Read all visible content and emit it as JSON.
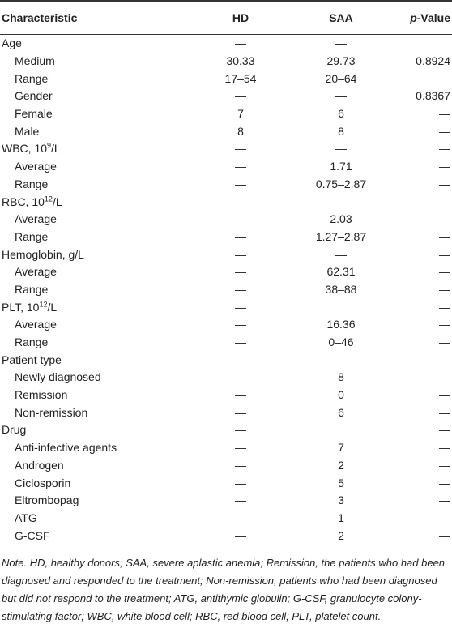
{
  "table": {
    "header": [
      "Characteristic",
      "HD",
      "SAA",
      "p-Value"
    ],
    "rows": [
      {
        "label": "Age",
        "level": 0,
        "cells": [
          "—",
          "—",
          null
        ]
      },
      {
        "label": "Medium",
        "level": 1,
        "cells": [
          "30.33",
          "29.73",
          "0.8924"
        ]
      },
      {
        "label": "Range",
        "level": 1,
        "cells": [
          "17–54",
          "20–64",
          null
        ]
      },
      {
        "label": "Gender",
        "level": 1,
        "cells": [
          "—",
          "—",
          "0.8367"
        ]
      },
      {
        "label": "Female",
        "level": 1,
        "cells": [
          "7",
          "6",
          "—"
        ]
      },
      {
        "label": "Male",
        "level": 1,
        "cells": [
          "8",
          "8",
          "—"
        ]
      },
      {
        "label": {
          "base": "WBC, 10",
          "sup": "9",
          "unit": "/L"
        },
        "level": 0,
        "cells": [
          "—",
          "—",
          "—"
        ]
      },
      {
        "label": "Average",
        "level": 1,
        "cells": [
          "—",
          "1.71",
          "—"
        ]
      },
      {
        "label": "Range",
        "level": 1,
        "cells": [
          "—",
          "0.75–2.87",
          "—"
        ]
      },
      {
        "label": {
          "base": "RBC, 10",
          "sup": "12",
          "unit": "/L"
        },
        "level": 0,
        "cells": [
          "—",
          "—",
          "—"
        ]
      },
      {
        "label": "Average",
        "level": 1,
        "cells": [
          "—",
          "2.03",
          "—"
        ]
      },
      {
        "label": "Range",
        "level": 1,
        "cells": [
          "—",
          "1.27–2.87",
          "—"
        ]
      },
      {
        "label": "Hemoglobin, g/L",
        "level": 0,
        "cells": [
          "—",
          "—",
          "—"
        ]
      },
      {
        "label": "Average",
        "level": 1,
        "cells": [
          "—",
          "62.31",
          "—"
        ]
      },
      {
        "label": "Range",
        "level": 1,
        "cells": [
          "—",
          "38–88",
          "—"
        ]
      },
      {
        "label": {
          "base": "PLT, 10",
          "sup": "12",
          "unit": "/L"
        },
        "level": 0,
        "cells": [
          "—",
          null,
          "—"
        ]
      },
      {
        "label": "Average",
        "level": 1,
        "cells": [
          "—",
          "16.36",
          "—"
        ]
      },
      {
        "label": "Range",
        "level": 1,
        "cells": [
          "—",
          "0–46",
          "—"
        ]
      },
      {
        "label": "Patient type",
        "level": 0,
        "cells": [
          "—",
          "—",
          "—"
        ]
      },
      {
        "label": "Newly diagnosed",
        "level": 1,
        "cells": [
          "—",
          "8",
          "—"
        ]
      },
      {
        "label": "Remission",
        "level": 1,
        "cells": [
          "—",
          "0",
          "—"
        ]
      },
      {
        "label": "Non-remission",
        "level": 1,
        "cells": [
          "—",
          "6",
          "—"
        ]
      },
      {
        "label": "Drug",
        "level": 0,
        "cells": [
          "—",
          null,
          "—"
        ]
      },
      {
        "label": "Anti-infective agents",
        "level": 1,
        "cells": [
          "—",
          "7",
          "—"
        ]
      },
      {
        "label": "Androgen",
        "level": 1,
        "cells": [
          "—",
          "2",
          "—"
        ]
      },
      {
        "label": "Ciclosporin",
        "level": 1,
        "cells": [
          "—",
          "5",
          "—"
        ]
      },
      {
        "label": "Eltrombopag",
        "level": 1,
        "cells": [
          "—",
          "3",
          "—"
        ]
      },
      {
        "label": "ATG",
        "level": 1,
        "cells": [
          "—",
          "1",
          "—"
        ]
      },
      {
        "label": "G-CSF",
        "level": 1,
        "cells": [
          "—",
          "2",
          "—"
        ]
      }
    ]
  },
  "note": {
    "lead": "Note.",
    "text": "HD, healthy donors; SAA, severe aplastic anemia; Remission, the patients who had been diagnosed and responded to the treatment; Non-remission, patients who had been diagnosed but did not respond to the treatment; ATG, antithymic globulin; G-CSF, granulocyte colony-stimulating factor; WBC, white blood cell; RBC, red blood cell; PLT, platelet count."
  }
}
